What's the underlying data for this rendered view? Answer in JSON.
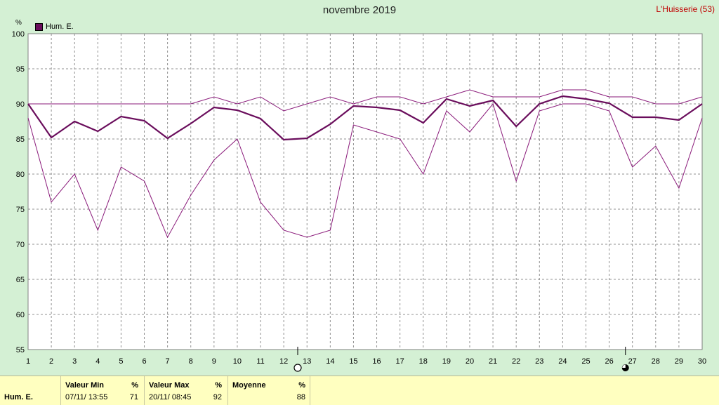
{
  "header": {
    "title": "novembre 2019",
    "station": "L'Huisserie (53)",
    "unit": "%"
  },
  "legend": {
    "label": "Hum. E.",
    "color": "#6a0d5c"
  },
  "chart_data": {
    "type": "line",
    "title": "novembre 2019",
    "ylabel": "%",
    "ylim": [
      55,
      100
    ],
    "y_ticks": [
      55,
      60,
      65,
      70,
      75,
      80,
      85,
      90,
      95,
      100
    ],
    "x": [
      1,
      2,
      3,
      4,
      5,
      6,
      7,
      8,
      9,
      10,
      11,
      12,
      13,
      14,
      15,
      16,
      17,
      18,
      19,
      20,
      21,
      22,
      23,
      24,
      25,
      26,
      27,
      28,
      29,
      30
    ],
    "grid": true,
    "series": [
      {
        "name": "max",
        "values": [
          90,
          90,
          90,
          90,
          90,
          90,
          90,
          90,
          91,
          90,
          91,
          89,
          90,
          91,
          90,
          91,
          91,
          90,
          91,
          92,
          91,
          91,
          91,
          92,
          92,
          91,
          91,
          90,
          90,
          91
        ]
      },
      {
        "name": "Hum. E.",
        "values": [
          90,
          85.2,
          87.5,
          86.1,
          88.2,
          87.6,
          85.1,
          87.2,
          89.5,
          89.1,
          87.9,
          84.9,
          85.1,
          87.1,
          89.7,
          89.5,
          89.1,
          87.3,
          90.7,
          89.7,
          90.5,
          86.8,
          90,
          91.1,
          90.7,
          90.1,
          88.1,
          88.1,
          87.7,
          90
        ]
      },
      {
        "name": "min",
        "values": [
          88,
          76,
          80,
          72,
          81,
          79,
          71,
          77,
          82,
          85,
          76,
          72,
          71,
          72,
          87,
          86,
          85,
          80,
          89,
          86,
          90,
          79,
          89,
          90,
          90,
          89,
          81,
          84,
          78,
          88
        ]
      }
    ],
    "moon_markers": [
      {
        "day": 12.6,
        "phase": "full"
      },
      {
        "day": 26.7,
        "phase": "new"
      }
    ]
  },
  "summary": {
    "row_label": "Hum. E.",
    "min": {
      "header": "Valeur Min",
      "unit": "%",
      "when": "07/11/  13:55",
      "value": "71"
    },
    "max": {
      "header": "Valeur Max",
      "unit": "%",
      "when": "20/11/  08:45",
      "value": "92"
    },
    "avg": {
      "header": "Moyenne",
      "unit": "%",
      "value": "88"
    }
  }
}
